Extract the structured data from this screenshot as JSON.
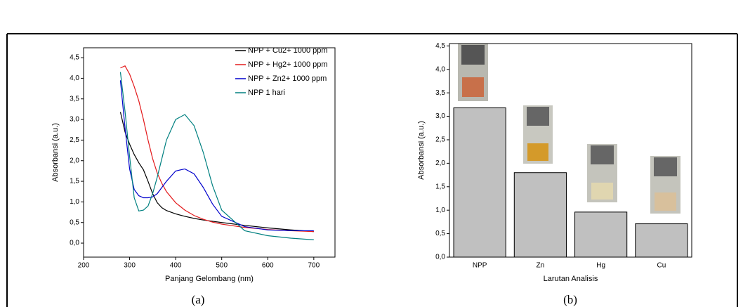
{
  "chart_data": [
    {
      "type": "line",
      "caption": "(a)",
      "x_label": "Panjang Gelombang (nm)",
      "y_label": "Absorbansi (a.u.)",
      "x": [
        280,
        290,
        300,
        310,
        320,
        330,
        340,
        350,
        360,
        370,
        380,
        400,
        420,
        440,
        460,
        480,
        500,
        550,
        600,
        650,
        700
      ],
      "series": [
        {
          "name": "NPP + Cu2+ 1000 ppm",
          "color": "#000000",
          "values": [
            3.18,
            2.7,
            2.4,
            2.15,
            1.95,
            1.78,
            1.5,
            1.2,
            0.98,
            0.86,
            0.79,
            0.71,
            0.65,
            0.6,
            0.56,
            0.53,
            0.5,
            0.43,
            0.37,
            0.32,
            0.28
          ]
        },
        {
          "name": "NPP + Hg2+ 1000 ppm",
          "color": "#e31a1c",
          "values": [
            4.25,
            4.3,
            4.1,
            3.8,
            3.45,
            3.0,
            2.5,
            2.05,
            1.7,
            1.45,
            1.25,
            0.98,
            0.8,
            0.67,
            0.58,
            0.51,
            0.46,
            0.38,
            0.33,
            0.3,
            0.28
          ]
        },
        {
          "name": "NPP + Zn2+ 1000 ppm",
          "color": "#0000cc",
          "values": [
            3.95,
            2.8,
            1.8,
            1.3,
            1.15,
            1.1,
            1.1,
            1.12,
            1.2,
            1.35,
            1.5,
            1.75,
            1.8,
            1.68,
            1.35,
            0.95,
            0.65,
            0.4,
            0.32,
            0.3,
            0.3
          ]
        },
        {
          "name": "NPP 1 hari",
          "color": "#008080",
          "values": [
            4.15,
            3.2,
            2.1,
            1.1,
            0.78,
            0.8,
            0.9,
            1.2,
            1.6,
            2.05,
            2.5,
            3.0,
            3.12,
            2.85,
            2.2,
            1.4,
            0.8,
            0.3,
            0.18,
            0.12,
            0.08
          ]
        }
      ],
      "xlim": [
        200,
        746
      ],
      "xticks": [
        200,
        300,
        400,
        500,
        600,
        700
      ],
      "ylim": [
        -0.34,
        4.74
      ],
      "yticks": [
        {
          "value": 0,
          "label": "0,0"
        },
        {
          "value": 0.5,
          "label": "0,5"
        },
        {
          "value": 1,
          "label": "1,0"
        },
        {
          "value": 1.5,
          "label": "1,5"
        },
        {
          "value": 2,
          "label": "2,0"
        },
        {
          "value": 2.5,
          "label": "2,5"
        },
        {
          "value": 3,
          "label": "3,0"
        },
        {
          "value": 3.5,
          "label": "3,5"
        },
        {
          "value": 4,
          "label": "4,0"
        },
        {
          "value": 4.5,
          "label": "4,5"
        }
      ]
    },
    {
      "type": "bar",
      "caption": "(b)",
      "x_label": "Larutan Analisis",
      "y_label": "Absorbansi (a.u.)",
      "categories": [
        "NPP",
        "Zn",
        "Hg",
        "Cu"
      ],
      "values": [
        3.18,
        1.8,
        0.96,
        0.71
      ],
      "color": "#c0c0c0",
      "ylim": [
        0,
        4.55
      ],
      "yticks": [
        {
          "value": 0,
          "label": "0,0"
        },
        {
          "value": 0.5,
          "label": "0,5"
        },
        {
          "value": 1,
          "label": "1,0"
        },
        {
          "value": 1.5,
          "label": "1,5"
        },
        {
          "value": 2,
          "label": "2,0"
        },
        {
          "value": 2.5,
          "label": "2,5"
        },
        {
          "value": 3,
          "label": "3,0"
        },
        {
          "value": 3.5,
          "label": "3,5"
        },
        {
          "value": 4,
          "label": "4,0"
        },
        {
          "value": 4.5,
          "label": "4,5"
        }
      ]
    }
  ]
}
